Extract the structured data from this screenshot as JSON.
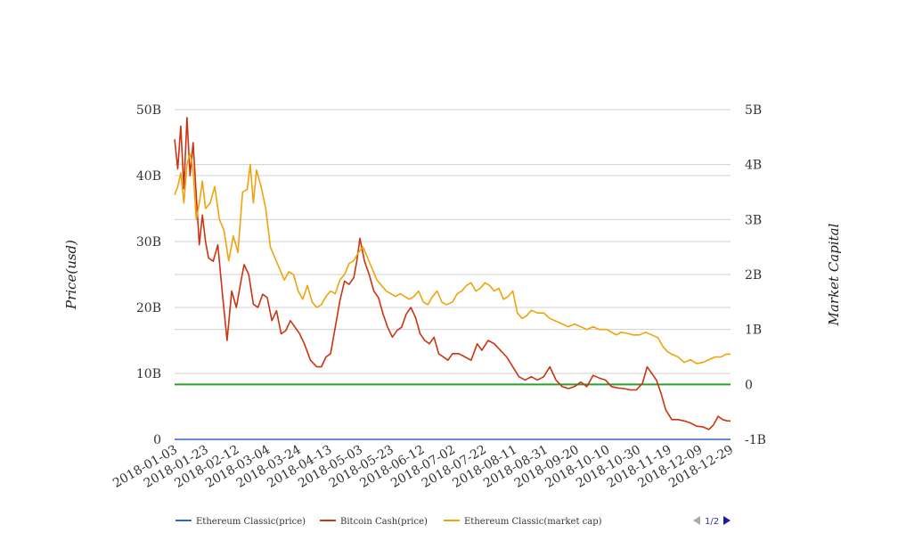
{
  "chart_data": {
    "type": "line",
    "x_start": "2018-01-03",
    "x_end": "2018-12-29",
    "x_ticks": [
      "2018-01-03",
      "2018-01-23",
      "2018-02-12",
      "2018-03-04",
      "2018-03-24",
      "2018-04-13",
      "2018-05-03",
      "2018-05-23",
      "2018-06-12",
      "2018-07-02",
      "2018-07-22",
      "2018-08-11",
      "2018-08-31",
      "2018-09-20",
      "2018-10-10",
      "2018-10-30",
      "2018-11-19",
      "2018-12-09",
      "2018-12-29"
    ],
    "y_left": {
      "label": "Price(usd)",
      "min": 0,
      "max": 50000000000,
      "ticks": [
        {
          "v": 0,
          "t": "0"
        },
        {
          "v": 10000000000,
          "t": "10B"
        },
        {
          "v": 20000000000,
          "t": "20B"
        },
        {
          "v": 30000000000,
          "t": "30B"
        },
        {
          "v": 40000000000,
          "t": "40B"
        },
        {
          "v": 50000000000,
          "t": "50B"
        }
      ]
    },
    "y_right": {
      "label": "Market Capital",
      "min": -1000000000,
      "max": 5000000000,
      "ticks": [
        {
          "v": -1000000000,
          "t": "-1B"
        },
        {
          "v": 0,
          "t": "0"
        },
        {
          "v": 1000000000,
          "t": "1B"
        },
        {
          "v": 2000000000,
          "t": "2B"
        },
        {
          "v": 3000000000,
          "t": "3B"
        },
        {
          "v": 4000000000,
          "t": "4B"
        },
        {
          "v": 5000000000,
          "t": "5B"
        }
      ]
    },
    "grid": true,
    "legend_position": "bottom",
    "legend_page": "1/2",
    "markline": {
      "axis": "right",
      "value": 0,
      "color": "#2ca02c"
    },
    "series": [
      {
        "name": "Ethereum Classic(price)",
        "axis": "left",
        "color": "#3366cc",
        "points": [
          [
            "2018-01-03",
            0
          ],
          [
            "2018-12-29",
            0
          ]
        ]
      },
      {
        "name": "Bitcoin Cash(price)",
        "axis": "left",
        "color": "#cc3311",
        "points": [
          [
            "2018-01-03",
            45500000000
          ],
          [
            "2018-01-05",
            41000000000
          ],
          [
            "2018-01-07",
            47500000000
          ],
          [
            "2018-01-09",
            38000000000
          ],
          [
            "2018-01-11",
            48800000000
          ],
          [
            "2018-01-13",
            40000000000
          ],
          [
            "2018-01-15",
            45000000000
          ],
          [
            "2018-01-17",
            37000000000
          ],
          [
            "2018-01-19",
            29500000000
          ],
          [
            "2018-01-21",
            34000000000
          ],
          [
            "2018-01-23",
            30000000000
          ],
          [
            "2018-01-25",
            27500000000
          ],
          [
            "2018-01-28",
            27000000000
          ],
          [
            "2018-01-31",
            29500000000
          ],
          [
            "2018-02-03",
            22000000000
          ],
          [
            "2018-02-06",
            15000000000
          ],
          [
            "2018-02-09",
            22500000000
          ],
          [
            "2018-02-12",
            20000000000
          ],
          [
            "2018-02-15",
            24000000000
          ],
          [
            "2018-02-17",
            26500000000
          ],
          [
            "2018-02-20",
            25000000000
          ],
          [
            "2018-02-23",
            20500000000
          ],
          [
            "2018-02-26",
            20000000000
          ],
          [
            "2018-03-01",
            22000000000
          ],
          [
            "2018-03-04",
            21500000000
          ],
          [
            "2018-03-07",
            18000000000
          ],
          [
            "2018-03-10",
            19500000000
          ],
          [
            "2018-03-13",
            16000000000
          ],
          [
            "2018-03-16",
            16500000000
          ],
          [
            "2018-03-19",
            18000000000
          ],
          [
            "2018-03-22",
            17000000000
          ],
          [
            "2018-03-25",
            16000000000
          ],
          [
            "2018-03-28",
            14500000000
          ],
          [
            "2018-04-01",
            12000000000
          ],
          [
            "2018-04-05",
            11000000000
          ],
          [
            "2018-04-08",
            11000000000
          ],
          [
            "2018-04-11",
            12500000000
          ],
          [
            "2018-04-14",
            13000000000
          ],
          [
            "2018-04-17",
            17000000000
          ],
          [
            "2018-04-20",
            21000000000
          ],
          [
            "2018-04-23",
            24000000000
          ],
          [
            "2018-04-26",
            23500000000
          ],
          [
            "2018-04-29",
            24500000000
          ],
          [
            "2018-05-01",
            27000000000
          ],
          [
            "2018-05-03",
            30500000000
          ],
          [
            "2018-05-06",
            27000000000
          ],
          [
            "2018-05-09",
            25000000000
          ],
          [
            "2018-05-12",
            22500000000
          ],
          [
            "2018-05-15",
            21500000000
          ],
          [
            "2018-05-18",
            19000000000
          ],
          [
            "2018-05-21",
            17000000000
          ],
          [
            "2018-05-24",
            15500000000
          ],
          [
            "2018-05-27",
            16500000000
          ],
          [
            "2018-05-30",
            17000000000
          ],
          [
            "2018-06-02",
            19000000000
          ],
          [
            "2018-06-05",
            20000000000
          ],
          [
            "2018-06-08",
            18500000000
          ],
          [
            "2018-06-11",
            16000000000
          ],
          [
            "2018-06-14",
            15000000000
          ],
          [
            "2018-06-17",
            14500000000
          ],
          [
            "2018-06-20",
            15500000000
          ],
          [
            "2018-06-23",
            13000000000
          ],
          [
            "2018-06-26",
            12500000000
          ],
          [
            "2018-06-29",
            12000000000
          ],
          [
            "2018-07-02",
            13000000000
          ],
          [
            "2018-07-06",
            13000000000
          ],
          [
            "2018-07-10",
            12500000000
          ],
          [
            "2018-07-14",
            12000000000
          ],
          [
            "2018-07-18",
            14500000000
          ],
          [
            "2018-07-21",
            13500000000
          ],
          [
            "2018-07-25",
            15000000000
          ],
          [
            "2018-07-29",
            14500000000
          ],
          [
            "2018-08-02",
            13500000000
          ],
          [
            "2018-08-06",
            12500000000
          ],
          [
            "2018-08-10",
            11000000000
          ],
          [
            "2018-08-14",
            9500000000
          ],
          [
            "2018-08-18",
            9000000000
          ],
          [
            "2018-08-22",
            9500000000
          ],
          [
            "2018-08-26",
            9000000000
          ],
          [
            "2018-08-30",
            9500000000
          ],
          [
            "2018-09-03",
            11000000000
          ],
          [
            "2018-09-07",
            9000000000
          ],
          [
            "2018-09-11",
            8000000000
          ],
          [
            "2018-09-15",
            7700000000
          ],
          [
            "2018-09-19",
            8000000000
          ],
          [
            "2018-09-23",
            8700000000
          ],
          [
            "2018-09-27",
            8000000000
          ],
          [
            "2018-10-01",
            9700000000
          ],
          [
            "2018-10-05",
            9300000000
          ],
          [
            "2018-10-09",
            9000000000
          ],
          [
            "2018-10-13",
            8000000000
          ],
          [
            "2018-10-17",
            7800000000
          ],
          [
            "2018-10-21",
            7700000000
          ],
          [
            "2018-10-25",
            7500000000
          ],
          [
            "2018-10-29",
            7500000000
          ],
          [
            "2018-11-02",
            8500000000
          ],
          [
            "2018-11-05",
            11000000000
          ],
          [
            "2018-11-08",
            10000000000
          ],
          [
            "2018-11-11",
            9000000000
          ],
          [
            "2018-11-14",
            7000000000
          ],
          [
            "2018-11-17",
            4500000000
          ],
          [
            "2018-11-21",
            3000000000
          ],
          [
            "2018-11-25",
            3000000000
          ],
          [
            "2018-11-29",
            2800000000
          ],
          [
            "2018-12-03",
            2500000000
          ],
          [
            "2018-12-07",
            2000000000
          ],
          [
            "2018-12-11",
            1900000000
          ],
          [
            "2018-12-15",
            1500000000
          ],
          [
            "2018-12-18",
            2200000000
          ],
          [
            "2018-12-21",
            3500000000
          ],
          [
            "2018-12-24",
            3000000000
          ],
          [
            "2018-12-27",
            2800000000
          ],
          [
            "2018-12-29",
            2800000000
          ]
        ]
      },
      {
        "name": "Ethereum Classic(market cap)",
        "axis": "right",
        "color": "#f0a30a",
        "points": [
          [
            "2018-01-03",
            3450000000
          ],
          [
            "2018-01-05",
            3600000000
          ],
          [
            "2018-01-07",
            3850000000
          ],
          [
            "2018-01-09",
            3300000000
          ],
          [
            "2018-01-11",
            4000000000
          ],
          [
            "2018-01-13",
            4200000000
          ],
          [
            "2018-01-15",
            3900000000
          ],
          [
            "2018-01-17",
            3000000000
          ],
          [
            "2018-01-19",
            3300000000
          ],
          [
            "2018-01-21",
            3700000000
          ],
          [
            "2018-01-23",
            3200000000
          ],
          [
            "2018-01-26",
            3300000000
          ],
          [
            "2018-01-29",
            3600000000
          ],
          [
            "2018-02-01",
            3000000000
          ],
          [
            "2018-02-04",
            2800000000
          ],
          [
            "2018-02-07",
            2250000000
          ],
          [
            "2018-02-10",
            2700000000
          ],
          [
            "2018-02-13",
            2400000000
          ],
          [
            "2018-02-16",
            3500000000
          ],
          [
            "2018-02-19",
            3550000000
          ],
          [
            "2018-02-21",
            4000000000
          ],
          [
            "2018-02-23",
            3300000000
          ],
          [
            "2018-02-25",
            3900000000
          ],
          [
            "2018-02-28",
            3600000000
          ],
          [
            "2018-03-03",
            3200000000
          ],
          [
            "2018-03-06",
            2500000000
          ],
          [
            "2018-03-09",
            2300000000
          ],
          [
            "2018-03-12",
            2100000000
          ],
          [
            "2018-03-15",
            1900000000
          ],
          [
            "2018-03-18",
            2050000000
          ],
          [
            "2018-03-21",
            2000000000
          ],
          [
            "2018-03-24",
            1700000000
          ],
          [
            "2018-03-27",
            1550000000
          ],
          [
            "2018-03-30",
            1800000000
          ],
          [
            "2018-04-02",
            1500000000
          ],
          [
            "2018-04-05",
            1400000000
          ],
          [
            "2018-04-08",
            1450000000
          ],
          [
            "2018-04-11",
            1600000000
          ],
          [
            "2018-04-14",
            1700000000
          ],
          [
            "2018-04-17",
            1650000000
          ],
          [
            "2018-04-20",
            1900000000
          ],
          [
            "2018-04-23",
            2000000000
          ],
          [
            "2018-04-26",
            2200000000
          ],
          [
            "2018-04-29",
            2250000000
          ],
          [
            "2018-05-02",
            2400000000
          ],
          [
            "2018-05-05",
            2500000000
          ],
          [
            "2018-05-08",
            2300000000
          ],
          [
            "2018-05-11",
            2100000000
          ],
          [
            "2018-05-14",
            1900000000
          ],
          [
            "2018-05-17",
            1800000000
          ],
          [
            "2018-05-20",
            1700000000
          ],
          [
            "2018-05-23",
            1650000000
          ],
          [
            "2018-05-26",
            1600000000
          ],
          [
            "2018-05-29",
            1650000000
          ],
          [
            "2018-06-01",
            1600000000
          ],
          [
            "2018-06-04",
            1550000000
          ],
          [
            "2018-06-07",
            1600000000
          ],
          [
            "2018-06-10",
            1700000000
          ],
          [
            "2018-06-13",
            1500000000
          ],
          [
            "2018-06-16",
            1450000000
          ],
          [
            "2018-06-19",
            1600000000
          ],
          [
            "2018-06-22",
            1700000000
          ],
          [
            "2018-06-25",
            1500000000
          ],
          [
            "2018-06-28",
            1450000000
          ],
          [
            "2018-07-02",
            1500000000
          ],
          [
            "2018-07-05",
            1650000000
          ],
          [
            "2018-07-08",
            1700000000
          ],
          [
            "2018-07-11",
            1800000000
          ],
          [
            "2018-07-14",
            1850000000
          ],
          [
            "2018-07-17",
            1700000000
          ],
          [
            "2018-07-20",
            1750000000
          ],
          [
            "2018-07-23",
            1850000000
          ],
          [
            "2018-07-26",
            1800000000
          ],
          [
            "2018-07-29",
            1700000000
          ],
          [
            "2018-08-01",
            1750000000
          ],
          [
            "2018-08-04",
            1550000000
          ],
          [
            "2018-08-07",
            1600000000
          ],
          [
            "2018-08-10",
            1700000000
          ],
          [
            "2018-08-13",
            1300000000
          ],
          [
            "2018-08-16",
            1200000000
          ],
          [
            "2018-08-19",
            1250000000
          ],
          [
            "2018-08-22",
            1350000000
          ],
          [
            "2018-08-26",
            1300000000
          ],
          [
            "2018-08-30",
            1300000000
          ],
          [
            "2018-09-03",
            1200000000
          ],
          [
            "2018-09-07",
            1150000000
          ],
          [
            "2018-09-11",
            1100000000
          ],
          [
            "2018-09-15",
            1050000000
          ],
          [
            "2018-09-19",
            1100000000
          ],
          [
            "2018-09-23",
            1050000000
          ],
          [
            "2018-09-27",
            1000000000
          ],
          [
            "2018-10-01",
            1050000000
          ],
          [
            "2018-10-05",
            1000000000
          ],
          [
            "2018-10-10",
            1000000000
          ],
          [
            "2018-10-13",
            950000000
          ],
          [
            "2018-10-16",
            900000000
          ],
          [
            "2018-10-19",
            950000000
          ],
          [
            "2018-10-23",
            930000000
          ],
          [
            "2018-10-27",
            900000000
          ],
          [
            "2018-10-31",
            900000000
          ],
          [
            "2018-11-04",
            950000000
          ],
          [
            "2018-11-08",
            900000000
          ],
          [
            "2018-11-12",
            850000000
          ],
          [
            "2018-11-15",
            700000000
          ],
          [
            "2018-11-18",
            600000000
          ],
          [
            "2018-11-21",
            550000000
          ],
          [
            "2018-11-25",
            500000000
          ],
          [
            "2018-11-29",
            400000000
          ],
          [
            "2018-12-03",
            450000000
          ],
          [
            "2018-12-07",
            380000000
          ],
          [
            "2018-12-11",
            400000000
          ],
          [
            "2018-12-15",
            450000000
          ],
          [
            "2018-12-19",
            500000000
          ],
          [
            "2018-12-23",
            500000000
          ],
          [
            "2018-12-26",
            550000000
          ],
          [
            "2018-12-29",
            550000000
          ]
        ]
      }
    ]
  }
}
